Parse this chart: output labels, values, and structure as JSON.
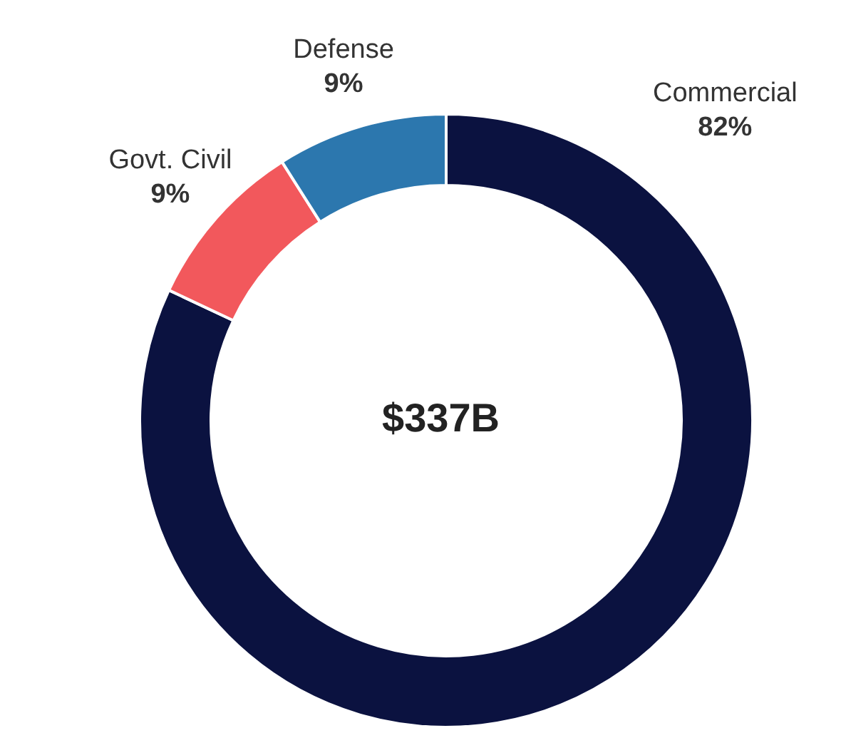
{
  "chart_data": {
    "type": "donut",
    "categories": [
      "Commercial",
      "Govt. Civil",
      "Defense"
    ],
    "values": [
      82,
      9,
      9
    ],
    "colors": [
      "#0b1240",
      "#f2585c",
      "#2c77ae"
    ],
    "value_labels": [
      "82%",
      "9%",
      "9%"
    ],
    "legend": false,
    "annotations": [
      "$337B"
    ]
  }
}
